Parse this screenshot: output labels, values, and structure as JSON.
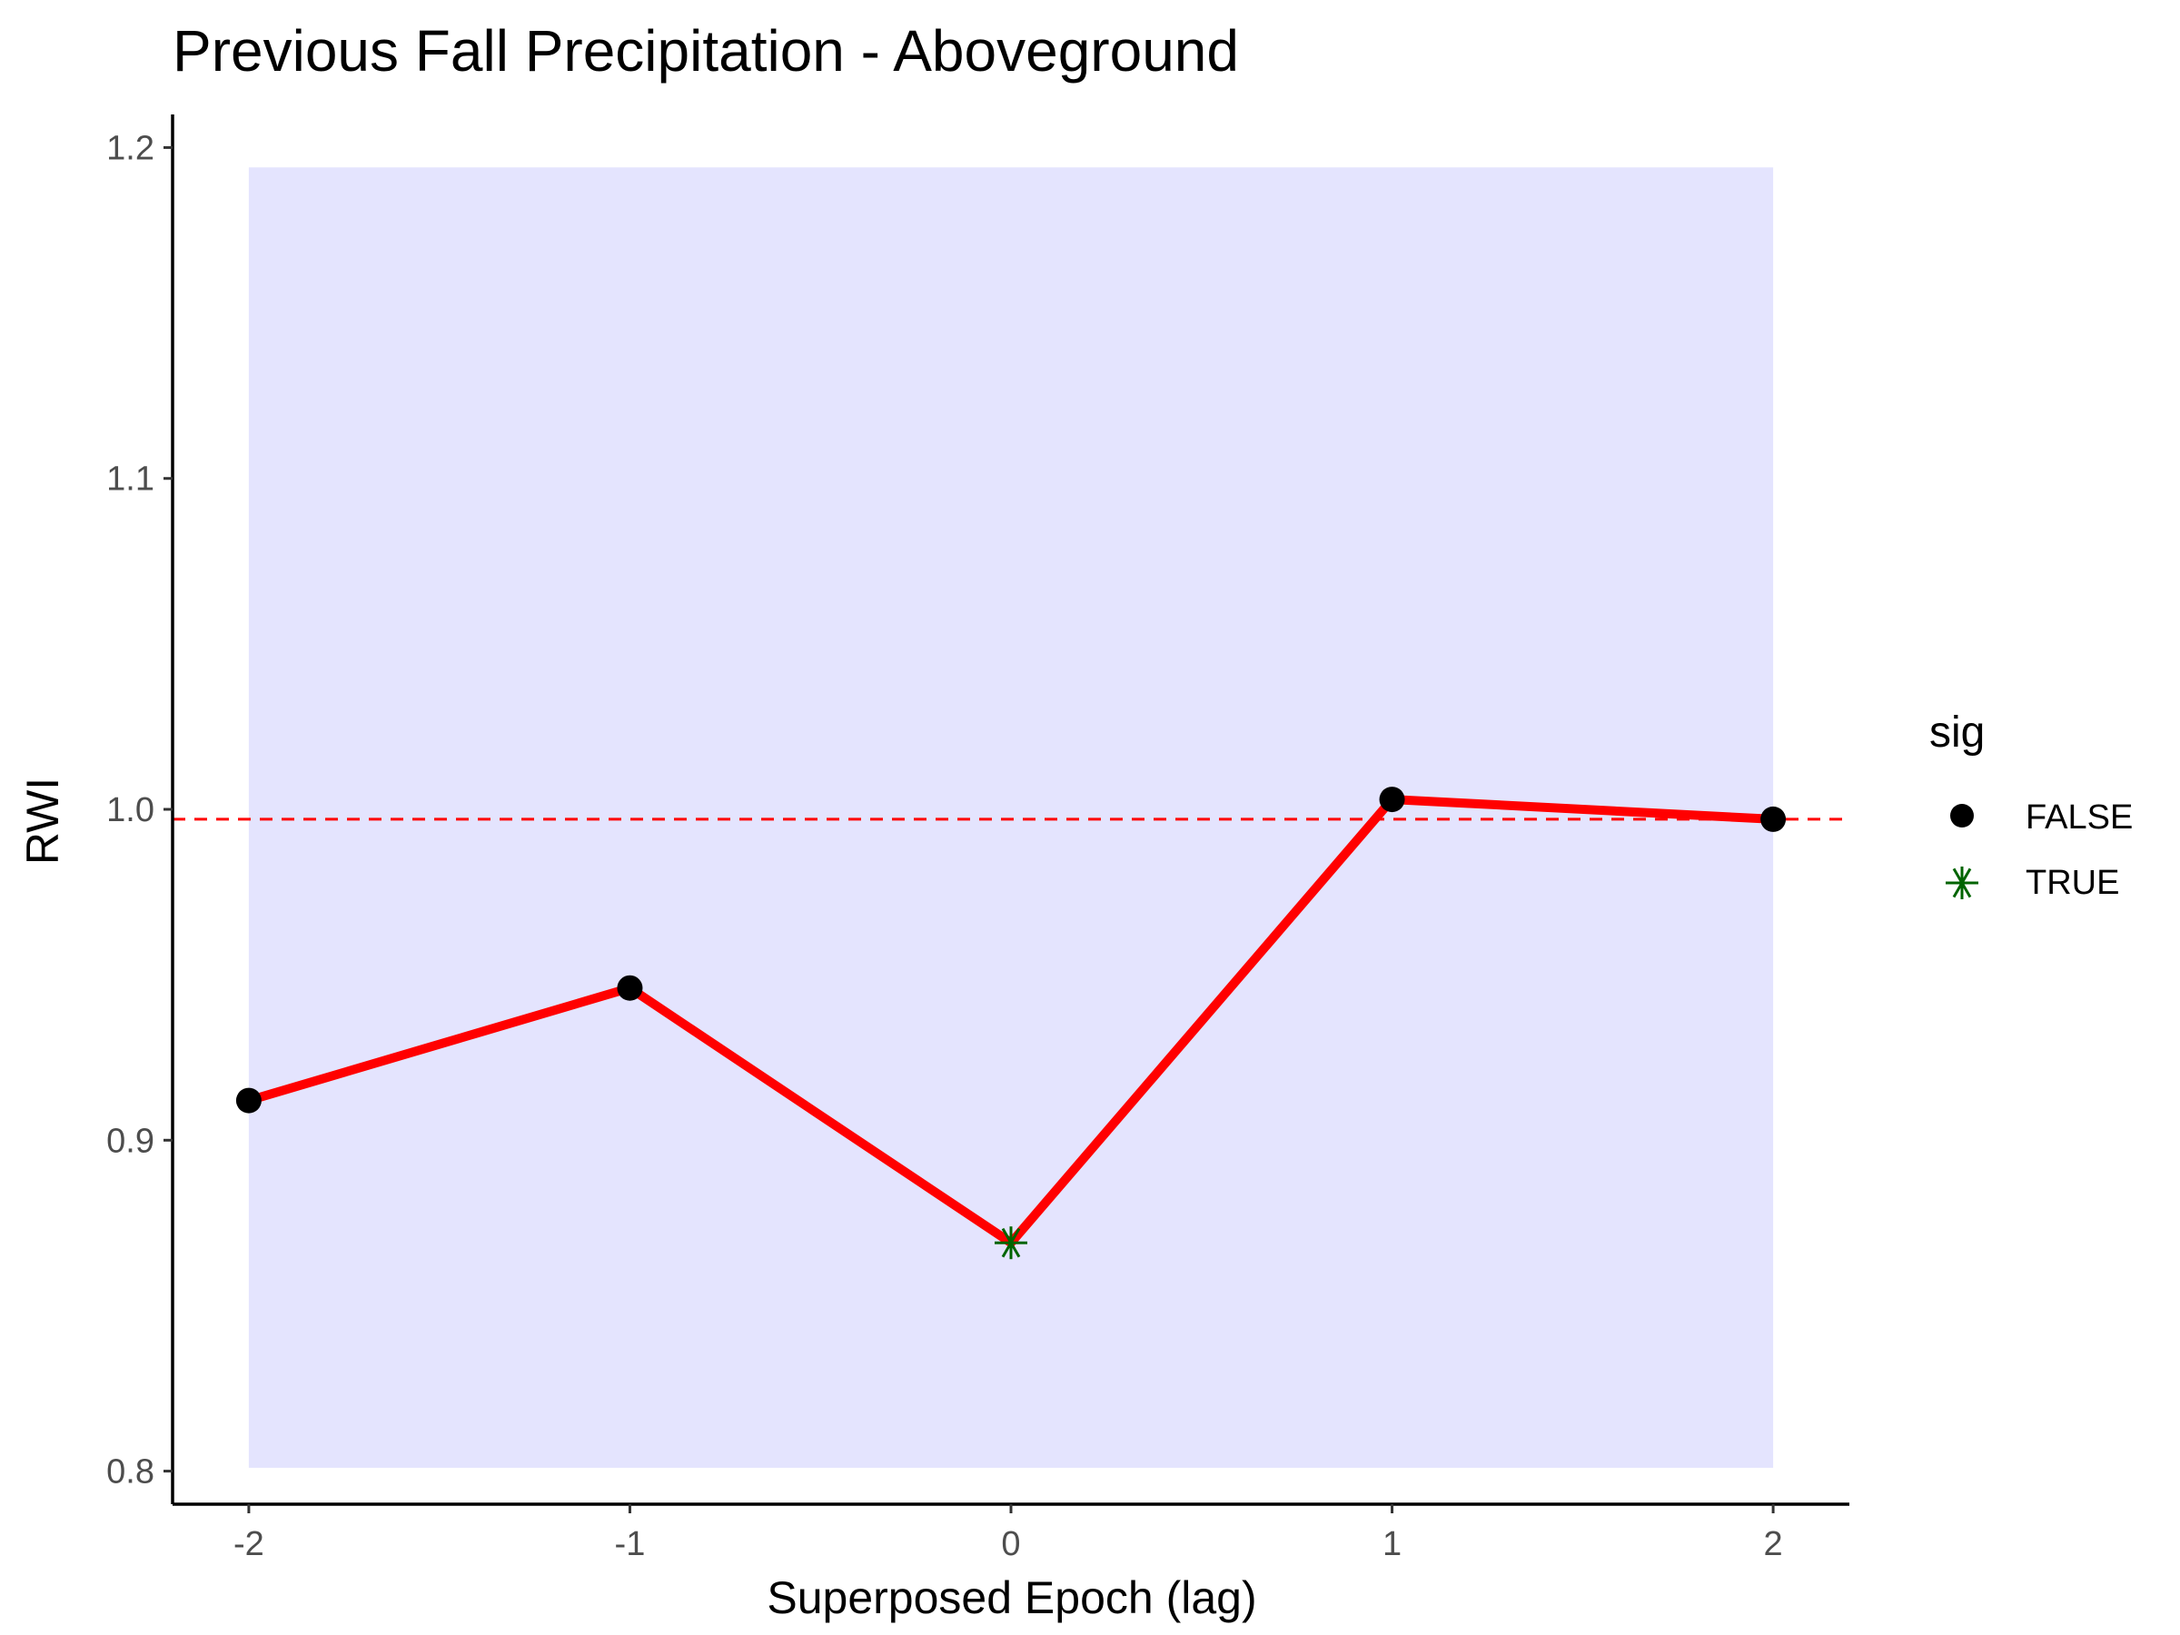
{
  "chart_data": {
    "type": "line",
    "title": "Previous Fall Precipitation - Aboveground",
    "xlabel": "Superposed Epoch (lag)",
    "ylabel": "RWI",
    "x": [
      -2,
      -1,
      0,
      1,
      2
    ],
    "x_tick_labels": [
      "-2",
      "-1",
      "0",
      "1",
      "2"
    ],
    "y_ticks": [
      0.8,
      0.9,
      1.0,
      1.1,
      1.2
    ],
    "y_tick_labels": [
      "0.8",
      "0.9",
      "1.0",
      "1.1",
      "1.2"
    ],
    "xlim": [
      -2.2,
      2.2
    ],
    "ylim": [
      0.79,
      1.21
    ],
    "series": [
      {
        "values": [
          0.912,
          0.946,
          0.869,
          1.003,
          0.997
        ],
        "sig": [
          false,
          false,
          true,
          false,
          false
        ],
        "color": "#ff0000"
      }
    ],
    "confidence_band": {
      "x_range": [
        -2,
        2
      ],
      "y_range": [
        0.801,
        1.194
      ],
      "color": "#e4e4fe"
    },
    "reference_line": {
      "y": 0.997,
      "style": "dashed",
      "color": "#ff0000"
    },
    "grid": false,
    "legend": {
      "title": "sig",
      "placement": "right",
      "entries": [
        {
          "label": "FALSE",
          "shape": "circle",
          "color": "#000000"
        },
        {
          "label": "TRUE",
          "shape": "asterisk",
          "color": "#006400"
        }
      ]
    }
  }
}
